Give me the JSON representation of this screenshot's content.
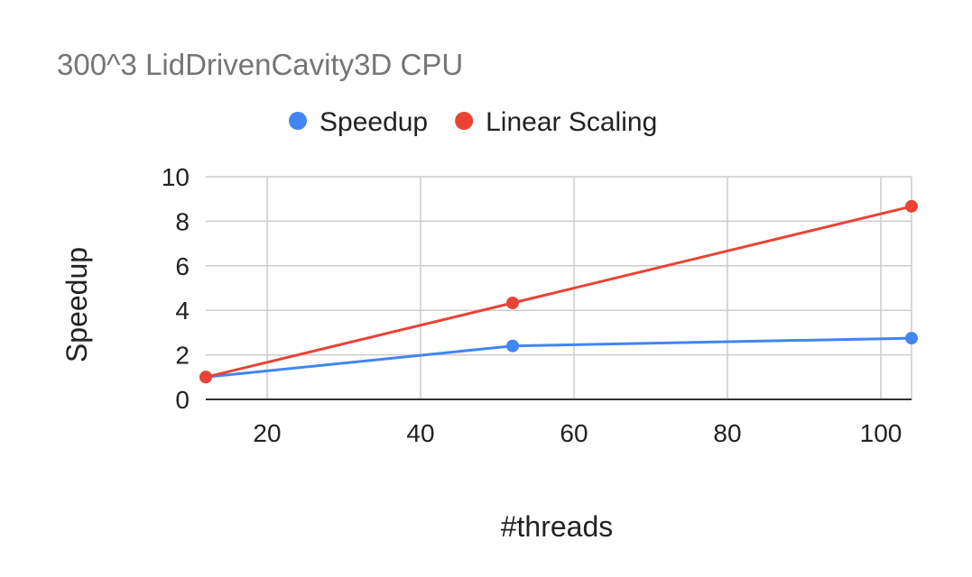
{
  "chart_data": {
    "type": "line",
    "title": "300^3 LidDrivenCavity3D CPU",
    "xlabel": "#threads",
    "ylabel": "Speedup",
    "xlim": [
      12,
      104
    ],
    "ylim": [
      0,
      10
    ],
    "xticks": [
      20,
      40,
      60,
      80,
      100
    ],
    "yticks": [
      0,
      2,
      4,
      6,
      8,
      10
    ],
    "grid": true,
    "legend_position": "top",
    "series": [
      {
        "name": "Speedup",
        "color": "#4285f4",
        "x": [
          12,
          52,
          104
        ],
        "y": [
          1.0,
          2.4,
          2.75
        ]
      },
      {
        "name": "Linear Scaling",
        "color": "#ea4335",
        "x": [
          12,
          52,
          104
        ],
        "y": [
          1.0,
          4.33,
          8.67
        ]
      }
    ]
  }
}
